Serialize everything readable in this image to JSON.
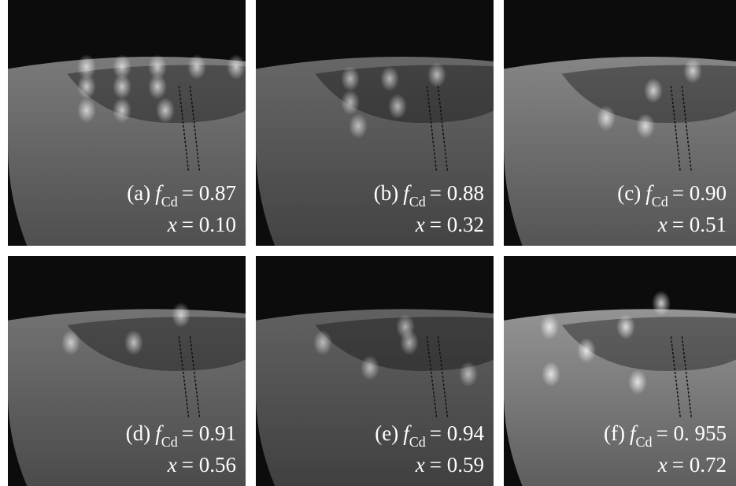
{
  "panels": [
    {
      "label": "(a)",
      "f_symbol": "f",
      "f_subscript": "Cd",
      "f_value": "= 0.87",
      "x_symbol": "x",
      "x_value": "= 0.10"
    },
    {
      "label": "(b)",
      "f_symbol": "f",
      "f_subscript": "Cd",
      "f_value": "= 0.88",
      "x_symbol": "x",
      "x_value": "= 0.32"
    },
    {
      "label": "(c)",
      "f_symbol": "f",
      "f_subscript": "Cd",
      "f_value": "= 0.90",
      "x_symbol": "x",
      "x_value": "= 0.51"
    },
    {
      "label": "(d)",
      "f_symbol": "f",
      "f_subscript": "Cd",
      "f_value": "= 0.91",
      "x_symbol": "x",
      "x_value": "= 0.56"
    },
    {
      "label": "(e)",
      "f_symbol": "f",
      "f_subscript": "Cd",
      "f_value": "= 0.94",
      "x_symbol": "x",
      "x_value": "= 0.59"
    },
    {
      "label": "(f)",
      "f_symbol": "f",
      "f_subscript": "Cd",
      "f_value": "= 0. 955",
      "x_symbol": "x",
      "x_value": "= 0.72"
    }
  ]
}
